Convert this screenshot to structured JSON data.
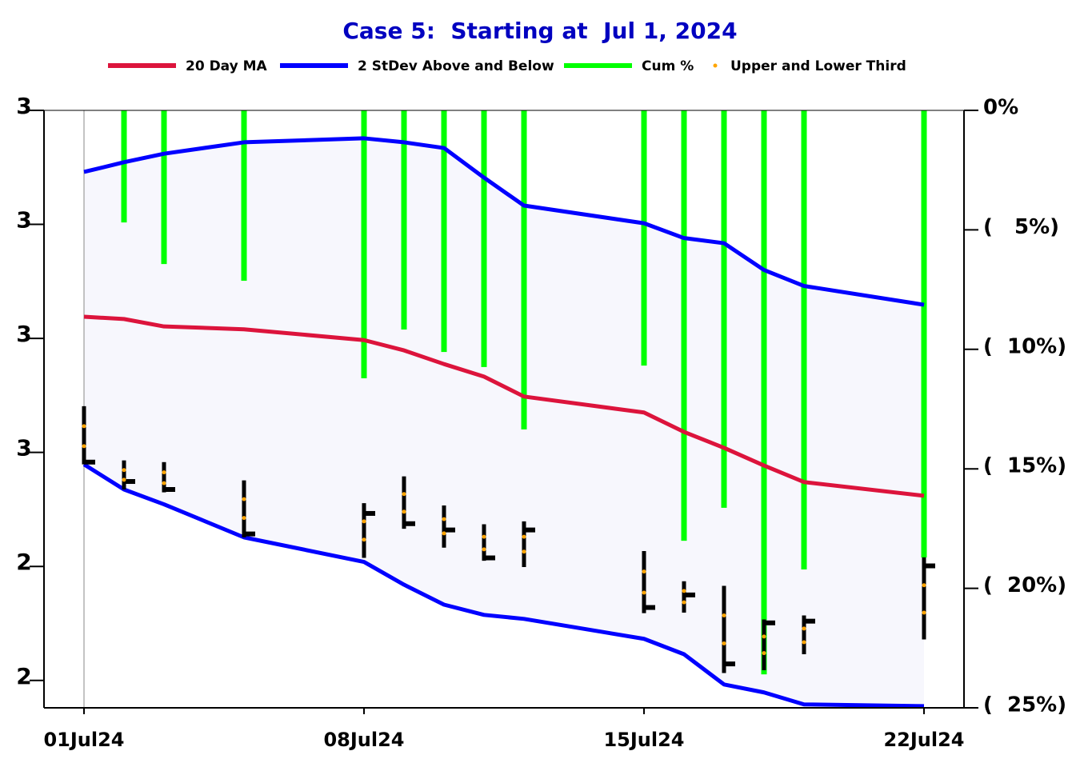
{
  "chart_data": {
    "type": "stock",
    "title": "Case 5:  Starting at  Jul 1, 2024",
    "x": [
      "2024-07-01",
      "2024-07-02",
      "2024-07-03",
      "2024-07-05",
      "2024-07-08",
      "2024-07-09",
      "2024-07-10",
      "2024-07-11",
      "2024-07-12",
      "2024-07-15",
      "2024-07-16",
      "2024-07-17",
      "2024-07-18",
      "2024-07-19",
      "2024-07-22"
    ],
    "xlim": [
      "2024-06-30",
      "2024-07-23"
    ],
    "xticks": [
      {
        "value": "2024-07-01",
        "label": "01Jul24"
      },
      {
        "value": "2024-07-08",
        "label": "08Jul24"
      },
      {
        "value": "2024-07-15",
        "label": "15Jul24"
      },
      {
        "value": "2024-07-22",
        "label": "22Jul24"
      }
    ],
    "ylim": [
      2.152,
      3.2
    ],
    "yticks": [
      {
        "value": 3.2,
        "label": "3"
      },
      {
        "value": 3.0,
        "label": "3"
      },
      {
        "value": 2.8,
        "label": "3"
      },
      {
        "value": 2.6,
        "label": "3"
      },
      {
        "value": 2.4,
        "label": "2"
      },
      {
        "value": 2.2,
        "label": "2"
      }
    ],
    "y2lim": [
      0,
      -25
    ],
    "y2ticks": [
      {
        "value": 0,
        "label": "0%"
      },
      {
        "value": -5,
        "label": "(   5%)"
      },
      {
        "value": -10,
        "label": "(  10%)"
      },
      {
        "value": -15,
        "label": "(  15%)"
      },
      {
        "value": -20,
        "label": "(  20%)"
      },
      {
        "value": -25,
        "label": "(  25%)"
      }
    ],
    "series": [
      {
        "name": "20 Day MA",
        "color": "#dc143c",
        "values": [
          2.838,
          2.834,
          2.821,
          2.816,
          2.797,
          2.779,
          2.755,
          2.733,
          2.698,
          2.67,
          2.636,
          2.608,
          2.577,
          2.548,
          2.524
        ]
      },
      {
        "name": "2 StDev Above and Below",
        "color": "#0000ff",
        "band_color": "#f7f7fd",
        "upper": [
          3.092,
          3.109,
          3.124,
          3.144,
          3.151,
          3.144,
          3.134,
          3.082,
          3.033,
          3.002,
          2.976,
          2.967,
          2.92,
          2.892,
          2.859
        ],
        "lower": [
          2.579,
          2.535,
          2.509,
          2.451,
          2.408,
          2.368,
          2.333,
          2.315,
          2.308,
          2.273,
          2.246,
          2.193,
          2.179,
          2.158,
          2.155
        ]
      },
      {
        "name": "Cum %",
        "color": "#00ff00",
        "axis": "y2",
        "values": [
          null,
          -4.69,
          -6.43,
          -7.13,
          -11.21,
          -9.17,
          -10.11,
          -10.74,
          -13.35,
          -10.68,
          -18.01,
          -16.63,
          -23.6,
          -19.21,
          -18.71
        ]
      },
      {
        "name": "Upper and Lower Third",
        "color": "#ffa500",
        "upper": [
          2.646,
          2.569,
          2.565,
          2.518,
          2.479,
          2.527,
          2.483,
          2.452,
          2.452,
          2.391,
          2.357,
          2.314,
          2.277,
          2.291,
          2.367
        ],
        "lower": [
          2.611,
          2.552,
          2.546,
          2.485,
          2.447,
          2.496,
          2.458,
          2.43,
          2.426,
          2.354,
          2.337,
          2.265,
          2.248,
          2.267,
          2.319
        ]
      }
    ],
    "ohlc": {
      "color": "#000000",
      "high": [
        2.681,
        2.586,
        2.583,
        2.551,
        2.511,
        2.558,
        2.507,
        2.474,
        2.479,
        2.427,
        2.374,
        2.366,
        2.307,
        2.314,
        2.416
      ],
      "low": [
        2.579,
        2.535,
        2.53,
        2.451,
        2.415,
        2.466,
        2.433,
        2.41,
        2.399,
        2.318,
        2.319,
        2.213,
        2.218,
        2.246,
        2.272
      ],
      "close": [
        2.583,
        2.549,
        2.535,
        2.457,
        2.493,
        2.475,
        2.464,
        2.415,
        2.464,
        2.328,
        2.35,
        2.229,
        2.301,
        2.304,
        2.401
      ]
    }
  }
}
